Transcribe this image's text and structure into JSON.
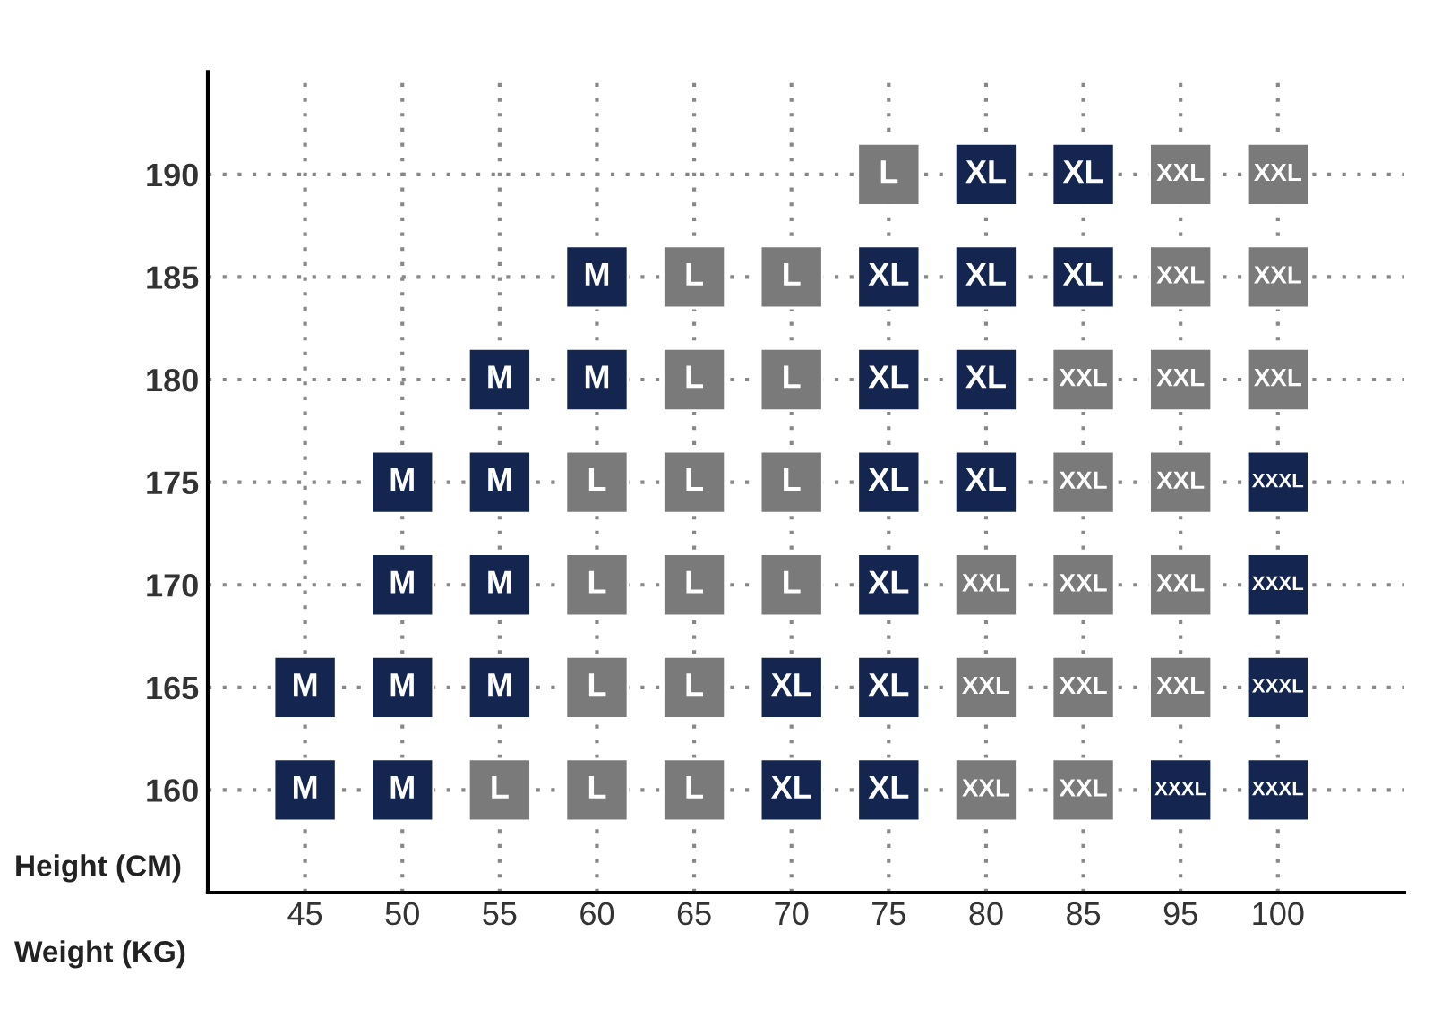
{
  "chart_data": {
    "type": "scatter",
    "xlabel": "Weight (KG)",
    "ylabel": "Height (CM)",
    "categories": [
      "45",
      "50",
      "55",
      "60",
      "65",
      "70",
      "75",
      "80",
      "85",
      "95",
      "100"
    ],
    "ylim": [
      155,
      195
    ],
    "yticks": [
      160,
      165,
      170,
      175,
      180,
      185,
      190
    ],
    "grid": true,
    "marker": "square",
    "legend": false,
    "series": [
      {
        "name": "M",
        "color": "#14264f",
        "x": [
          "60",
          "55",
          "60",
          "50",
          "55",
          "50",
          "55",
          "45",
          "50",
          "55",
          "45",
          "50"
        ],
        "values": [
          185,
          180,
          180,
          175,
          175,
          170,
          170,
          165,
          165,
          165,
          160,
          160
        ]
      },
      {
        "name": "L",
        "color": "#7a7a7a",
        "x": [
          "75",
          "65",
          "70",
          "65",
          "70",
          "60",
          "65",
          "70",
          "60",
          "65",
          "70",
          "60",
          "65",
          "55",
          "60",
          "65"
        ],
        "values": [
          190,
          185,
          185,
          180,
          180,
          175,
          175,
          175,
          170,
          170,
          170,
          165,
          165,
          160,
          160,
          160
        ]
      },
      {
        "name": "XL",
        "color": "#14264f",
        "x": [
          "80",
          "85",
          "75",
          "80",
          "85",
          "75",
          "80",
          "75",
          "80",
          "75",
          "70",
          "75",
          "70",
          "75"
        ],
        "values": [
          190,
          190,
          185,
          185,
          185,
          180,
          180,
          175,
          175,
          170,
          165,
          165,
          160,
          160
        ]
      },
      {
        "name": "XXL",
        "color": "#7a7a7a",
        "x": [
          "95",
          "100",
          "95",
          "100",
          "85",
          "95",
          "100",
          "85",
          "95",
          "80",
          "85",
          "95",
          "80",
          "85",
          "95",
          "80",
          "85"
        ],
        "values": [
          190,
          190,
          185,
          185,
          180,
          180,
          180,
          175,
          175,
          170,
          170,
          170,
          165,
          165,
          165,
          160,
          160
        ]
      },
      {
        "name": "XXXL",
        "color": "#14264f",
        "x": [
          "100",
          "100",
          "100",
          "95",
          "100"
        ],
        "values": [
          175,
          170,
          165,
          160,
          160
        ]
      }
    ]
  }
}
